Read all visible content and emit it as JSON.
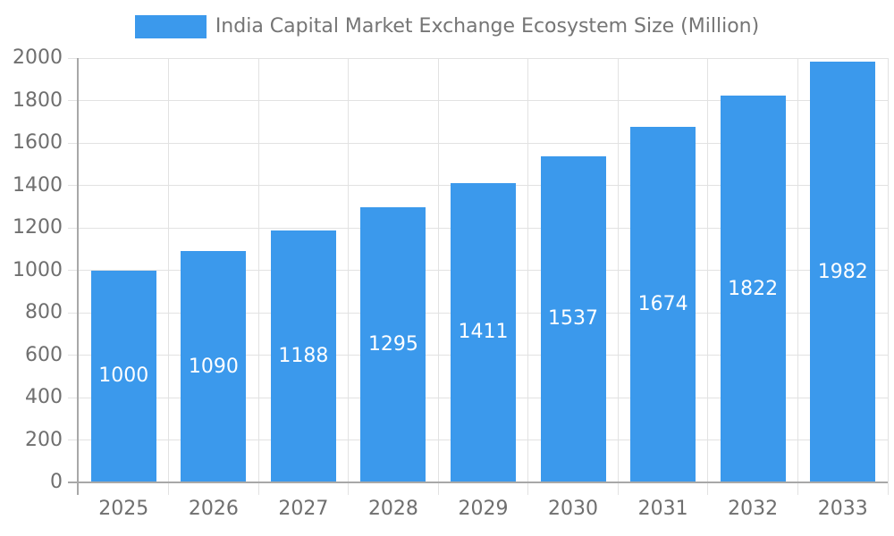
{
  "chart_data": {
    "type": "bar",
    "title": "India Capital Market Exchange Ecosystem Size (Million)",
    "categories": [
      "2025",
      "2026",
      "2027",
      "2028",
      "2029",
      "2030",
      "2031",
      "2032",
      "2033"
    ],
    "values": [
      1000,
      1090,
      1188,
      1295,
      1411,
      1537,
      1674,
      1822,
      1982
    ],
    "xlabel": "",
    "ylabel": "",
    "ylim": [
      0,
      2000
    ],
    "y_ticks": [
      0,
      200,
      400,
      600,
      800,
      1000,
      1200,
      1400,
      1600,
      1800,
      2000
    ],
    "grid": true,
    "legend_position": "top",
    "value_label_position": "inside-center",
    "colors": {
      "bar": "#3B99EC",
      "value_label": "#FFFFFF",
      "axis_text": "#6F6F6F",
      "legend_text": "#757575",
      "axis_line": "#A8A8A8",
      "gridline": "#E2E2E2",
      "background": "#FFFFFF"
    }
  }
}
